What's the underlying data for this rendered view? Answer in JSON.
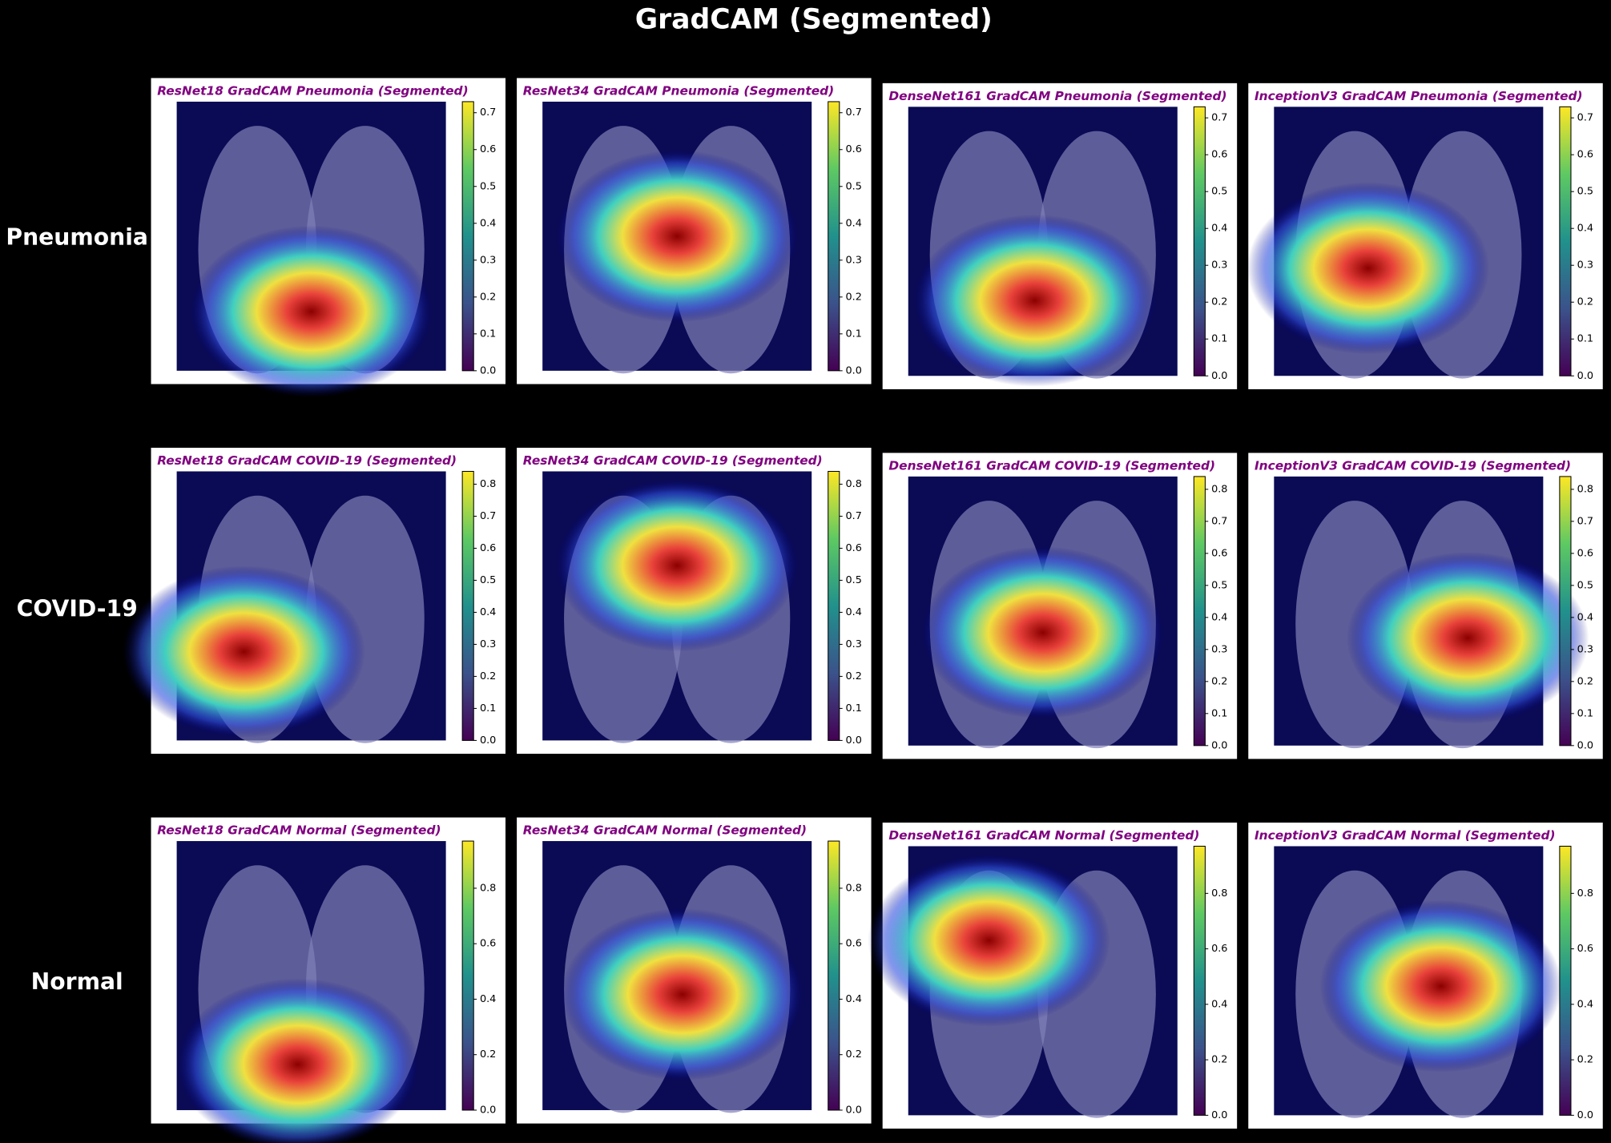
{
  "title": "GradCAM (Segmented)",
  "rows": [
    {
      "label": "Pneumonia",
      "colorbar": {
        "range": [
          0,
          0.73
        ],
        "ticks": [
          {
            "value": 0,
            "label": "0.0"
          },
          {
            "value": 0.1,
            "label": "0.1"
          },
          {
            "value": 0.2,
            "label": "0.2"
          },
          {
            "value": 0.3,
            "label": "0.3"
          },
          {
            "value": 0.4,
            "label": "0.4"
          },
          {
            "value": 0.5,
            "label": "0.5"
          },
          {
            "value": 0.6,
            "label": "0.6"
          },
          {
            "value": 0.7,
            "label": "0.7"
          }
        ]
      },
      "panels": [
        {
          "title": "ResNet18 GradCAM Pneumonia (Segmented)"
        },
        {
          "title": "ResNet34 GradCAM Pneumonia (Segmented)"
        },
        {
          "title": "DenseNet161 GradCAM Pneumonia (Segmented)"
        },
        {
          "title": "InceptionV3 GradCAM Pneumonia (Segmented)"
        }
      ]
    },
    {
      "label": "COVID-19",
      "colorbar": {
        "range": [
          0,
          0.84
        ],
        "ticks": [
          {
            "value": 0,
            "label": "0.0"
          },
          {
            "value": 0.1,
            "label": "0.1"
          },
          {
            "value": 0.2,
            "label": "0.2"
          },
          {
            "value": 0.3,
            "label": "0.3"
          },
          {
            "value": 0.4,
            "label": "0.4"
          },
          {
            "value": 0.5,
            "label": "0.5"
          },
          {
            "value": 0.6,
            "label": "0.6"
          },
          {
            "value": 0.7,
            "label": "0.7"
          },
          {
            "value": 0.8,
            "label": "0.8"
          }
        ]
      },
      "panels": [
        {
          "title": "ResNet18 GradCAM COVID-19 (Segmented)"
        },
        {
          "title": "ResNet34 GradCAM COVID-19 (Segmented)"
        },
        {
          "title": "DenseNet161 GradCAM COVID-19 (Segmented)"
        },
        {
          "title": "InceptionV3 GradCAM COVID-19 (Segmented)"
        }
      ]
    },
    {
      "label": "Normal",
      "colorbar": {
        "range": [
          0,
          0.97
        ],
        "ticks": [
          {
            "value": 0,
            "label": "0.0"
          },
          {
            "value": 0.2,
            "label": "0.2"
          },
          {
            "value": 0.4,
            "label": "0.4"
          },
          {
            "value": 0.6,
            "label": "0.6"
          },
          {
            "value": 0.8,
            "label": "0.8"
          }
        ]
      },
      "panels": [
        {
          "title": "ResNet18 GradCAM Normal (Segmented)"
        },
        {
          "title": "ResNet34 GradCAM Normal (Segmented)"
        },
        {
          "title": "DenseNet161 GradCAM Normal (Segmented)"
        },
        {
          "title": "InceptionV3 GradCAM Normal (Segmented)"
        }
      ]
    }
  ]
}
